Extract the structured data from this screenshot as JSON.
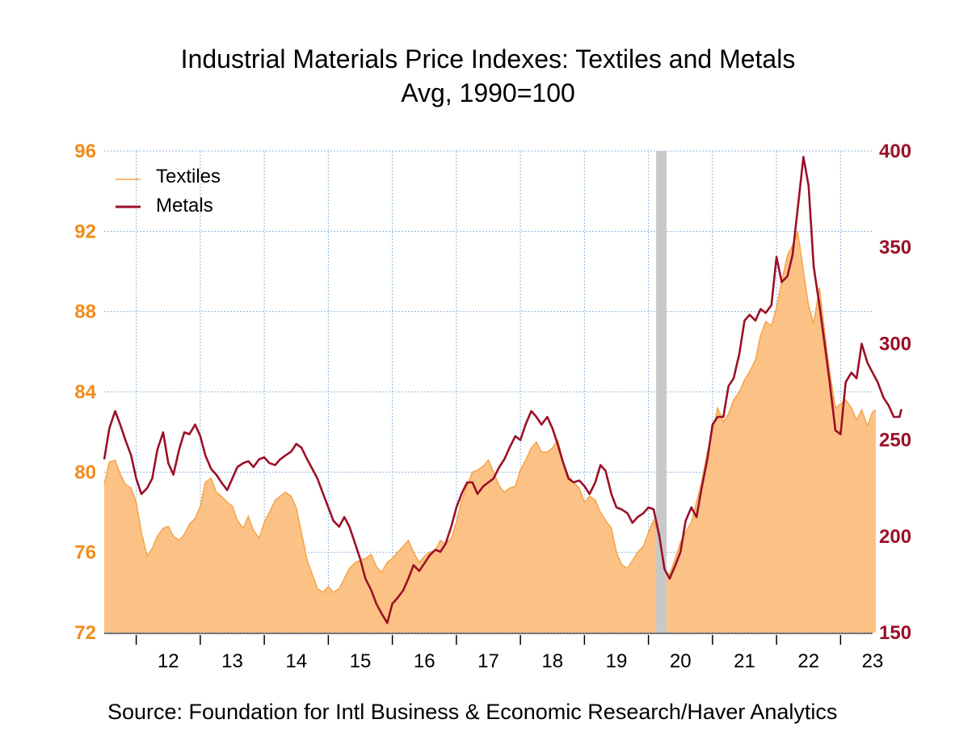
{
  "chart_data": {
    "type": "area+line",
    "title": "Industrial Materials Price Indexes: Textiles and Metals",
    "subtitle": "Avg, 1990=100",
    "source": "Source:  Foundation for Intl Business & Economic Research/Haver Analytics",
    "x_range": [
      2011.5,
      2023.5
    ],
    "x_tick_labels": [
      "12",
      "13",
      "14",
      "15",
      "16",
      "17",
      "18",
      "19",
      "20",
      "21",
      "22",
      "23"
    ],
    "y_left": {
      "ticks": [
        "72",
        "76",
        "80",
        "84",
        "88",
        "92",
        "96"
      ],
      "range": [
        72,
        96
      ]
    },
    "y_right": {
      "ticks": [
        "150",
        "200",
        "250",
        "300",
        "350",
        "400"
      ],
      "range": [
        150,
        400
      ]
    },
    "grid": true,
    "legend_position": "top-left",
    "recession_shading": [
      2020.12,
      2020.28
    ],
    "series": [
      {
        "name": "Textiles",
        "axis": "left",
        "style": "area",
        "color": "#f5a44a",
        "fill": "#fcc285",
        "points": [
          [
            2011.5,
            79.4
          ],
          [
            2011.58,
            80.5
          ],
          [
            2011.67,
            80.6
          ],
          [
            2011.75,
            79.9
          ],
          [
            2011.83,
            79.4
          ],
          [
            2011.92,
            79.2
          ],
          [
            2012.0,
            78.5
          ],
          [
            2012.08,
            77.0
          ],
          [
            2012.17,
            75.8
          ],
          [
            2012.25,
            76.2
          ],
          [
            2012.33,
            76.8
          ],
          [
            2012.42,
            77.2
          ],
          [
            2012.5,
            77.3
          ],
          [
            2012.58,
            76.8
          ],
          [
            2012.67,
            76.6
          ],
          [
            2012.75,
            76.9
          ],
          [
            2012.83,
            77.4
          ],
          [
            2012.92,
            77.7
          ],
          [
            2013.0,
            78.3
          ],
          [
            2013.08,
            79.5
          ],
          [
            2013.17,
            79.7
          ],
          [
            2013.25,
            79.0
          ],
          [
            2013.33,
            78.8
          ],
          [
            2013.42,
            78.5
          ],
          [
            2013.5,
            78.3
          ],
          [
            2013.58,
            77.6
          ],
          [
            2013.67,
            77.2
          ],
          [
            2013.75,
            77.8
          ],
          [
            2013.83,
            77.1
          ],
          [
            2013.92,
            76.7
          ],
          [
            2014.0,
            77.5
          ],
          [
            2014.08,
            78.0
          ],
          [
            2014.17,
            78.6
          ],
          [
            2014.25,
            78.8
          ],
          [
            2014.33,
            79.0
          ],
          [
            2014.42,
            78.8
          ],
          [
            2014.5,
            78.2
          ],
          [
            2014.58,
            77.0
          ],
          [
            2014.67,
            75.6
          ],
          [
            2014.75,
            74.9
          ],
          [
            2014.83,
            74.2
          ],
          [
            2014.92,
            74.0
          ],
          [
            2015.0,
            74.3
          ],
          [
            2015.08,
            74.0
          ],
          [
            2015.17,
            74.2
          ],
          [
            2015.25,
            74.7
          ],
          [
            2015.33,
            75.2
          ],
          [
            2015.42,
            75.5
          ],
          [
            2015.5,
            75.6
          ],
          [
            2015.58,
            75.7
          ],
          [
            2015.67,
            75.9
          ],
          [
            2015.75,
            75.3
          ],
          [
            2015.83,
            75.0
          ],
          [
            2015.92,
            75.5
          ],
          [
            2016.0,
            75.7
          ],
          [
            2016.08,
            76.0
          ],
          [
            2016.17,
            76.3
          ],
          [
            2016.25,
            76.6
          ],
          [
            2016.33,
            76.0
          ],
          [
            2016.42,
            75.5
          ],
          [
            2016.5,
            75.8
          ],
          [
            2016.58,
            76.0
          ],
          [
            2016.67,
            76.1
          ],
          [
            2016.75,
            76.6
          ],
          [
            2016.83,
            76.4
          ],
          [
            2016.92,
            76.7
          ],
          [
            2017.0,
            77.5
          ],
          [
            2017.08,
            78.6
          ],
          [
            2017.17,
            79.3
          ],
          [
            2017.25,
            80.0
          ],
          [
            2017.33,
            80.1
          ],
          [
            2017.42,
            80.3
          ],
          [
            2017.5,
            80.6
          ],
          [
            2017.58,
            80.0
          ],
          [
            2017.67,
            79.3
          ],
          [
            2017.75,
            79.0
          ],
          [
            2017.83,
            79.2
          ],
          [
            2017.92,
            79.3
          ],
          [
            2018.0,
            80.1
          ],
          [
            2018.08,
            80.6
          ],
          [
            2018.17,
            81.2
          ],
          [
            2018.25,
            81.5
          ],
          [
            2018.33,
            81.0
          ],
          [
            2018.42,
            81.0
          ],
          [
            2018.5,
            81.2
          ],
          [
            2018.58,
            81.6
          ],
          [
            2018.67,
            80.5
          ],
          [
            2018.75,
            79.8
          ],
          [
            2018.83,
            79.5
          ],
          [
            2018.92,
            79.2
          ],
          [
            2019.0,
            78.5
          ],
          [
            2019.08,
            78.8
          ],
          [
            2019.17,
            78.6
          ],
          [
            2019.25,
            78.0
          ],
          [
            2019.33,
            77.6
          ],
          [
            2019.42,
            77.2
          ],
          [
            2019.5,
            76.0
          ],
          [
            2019.58,
            75.4
          ],
          [
            2019.67,
            75.2
          ],
          [
            2019.75,
            75.6
          ],
          [
            2019.83,
            76.0
          ],
          [
            2019.92,
            76.3
          ],
          [
            2020.0,
            77.0
          ],
          [
            2020.08,
            77.6
          ],
          [
            2020.17,
            76.7
          ],
          [
            2020.25,
            75.0
          ],
          [
            2020.33,
            74.9
          ],
          [
            2020.42,
            75.7
          ],
          [
            2020.5,
            76.5
          ],
          [
            2020.58,
            77.0
          ],
          [
            2020.67,
            77.5
          ],
          [
            2020.75,
            78.5
          ],
          [
            2020.83,
            79.5
          ],
          [
            2020.92,
            81.0
          ],
          [
            2021.0,
            82.0
          ],
          [
            2021.08,
            83.2
          ],
          [
            2021.17,
            82.5
          ],
          [
            2021.25,
            82.9
          ],
          [
            2021.33,
            83.6
          ],
          [
            2021.42,
            84.0
          ],
          [
            2021.5,
            84.6
          ],
          [
            2021.58,
            85.0
          ],
          [
            2021.67,
            85.6
          ],
          [
            2021.75,
            86.8
          ],
          [
            2021.83,
            87.5
          ],
          [
            2021.92,
            87.3
          ],
          [
            2022.0,
            88.2
          ],
          [
            2022.08,
            89.5
          ],
          [
            2022.17,
            90.8
          ],
          [
            2022.25,
            91.3
          ],
          [
            2022.33,
            92.0
          ],
          [
            2022.42,
            90.0
          ],
          [
            2022.5,
            88.3
          ],
          [
            2022.58,
            87.4
          ],
          [
            2022.67,
            89.2
          ],
          [
            2022.75,
            87.0
          ],
          [
            2022.83,
            85.0
          ],
          [
            2022.92,
            83.2
          ],
          [
            2023.0,
            83.4
          ],
          [
            2023.08,
            83.6
          ],
          [
            2023.17,
            83.2
          ],
          [
            2023.25,
            82.6
          ],
          [
            2023.33,
            83.1
          ],
          [
            2023.42,
            82.3
          ],
          [
            2023.5,
            83.0
          ],
          [
            2023.55,
            83.1
          ]
        ]
      },
      {
        "name": "Metals",
        "axis": "right",
        "style": "line",
        "color": "#9b1028",
        "points": [
          [
            2011.5,
            240
          ],
          [
            2011.58,
            256
          ],
          [
            2011.67,
            265
          ],
          [
            2011.75,
            258
          ],
          [
            2011.83,
            250
          ],
          [
            2011.92,
            242
          ],
          [
            2012.0,
            230
          ],
          [
            2012.08,
            222
          ],
          [
            2012.17,
            225
          ],
          [
            2012.25,
            230
          ],
          [
            2012.33,
            245
          ],
          [
            2012.42,
            254
          ],
          [
            2012.5,
            238
          ],
          [
            2012.58,
            232
          ],
          [
            2012.67,
            245
          ],
          [
            2012.75,
            254
          ],
          [
            2012.83,
            253
          ],
          [
            2012.92,
            258
          ],
          [
            2013.0,
            252
          ],
          [
            2013.08,
            242
          ],
          [
            2013.17,
            235
          ],
          [
            2013.25,
            232
          ],
          [
            2013.33,
            228
          ],
          [
            2013.42,
            224
          ],
          [
            2013.5,
            230
          ],
          [
            2013.58,
            236
          ],
          [
            2013.67,
            238
          ],
          [
            2013.75,
            239
          ],
          [
            2013.83,
            236
          ],
          [
            2013.92,
            240
          ],
          [
            2014.0,
            241
          ],
          [
            2014.08,
            238
          ],
          [
            2014.17,
            237
          ],
          [
            2014.25,
            240
          ],
          [
            2014.33,
            242
          ],
          [
            2014.42,
            244
          ],
          [
            2014.5,
            248
          ],
          [
            2014.58,
            246
          ],
          [
            2014.67,
            240
          ],
          [
            2014.75,
            235
          ],
          [
            2014.83,
            230
          ],
          [
            2014.92,
            222
          ],
          [
            2015.0,
            215
          ],
          [
            2015.08,
            208
          ],
          [
            2015.17,
            205
          ],
          [
            2015.25,
            210
          ],
          [
            2015.33,
            205
          ],
          [
            2015.42,
            196
          ],
          [
            2015.5,
            188
          ],
          [
            2015.58,
            178
          ],
          [
            2015.67,
            172
          ],
          [
            2015.75,
            165
          ],
          [
            2015.83,
            160
          ],
          [
            2015.92,
            155
          ],
          [
            2016.0,
            165
          ],
          [
            2016.08,
            168
          ],
          [
            2016.17,
            172
          ],
          [
            2016.25,
            178
          ],
          [
            2016.33,
            185
          ],
          [
            2016.42,
            182
          ],
          [
            2016.5,
            186
          ],
          [
            2016.58,
            190
          ],
          [
            2016.67,
            193
          ],
          [
            2016.75,
            192
          ],
          [
            2016.83,
            196
          ],
          [
            2016.92,
            205
          ],
          [
            2017.0,
            215
          ],
          [
            2017.08,
            222
          ],
          [
            2017.17,
            228
          ],
          [
            2017.25,
            228
          ],
          [
            2017.33,
            222
          ],
          [
            2017.42,
            226
          ],
          [
            2017.5,
            228
          ],
          [
            2017.58,
            230
          ],
          [
            2017.67,
            236
          ],
          [
            2017.75,
            240
          ],
          [
            2017.83,
            246
          ],
          [
            2017.92,
            252
          ],
          [
            2018.0,
            250
          ],
          [
            2018.08,
            258
          ],
          [
            2018.17,
            265
          ],
          [
            2018.25,
            262
          ],
          [
            2018.33,
            258
          ],
          [
            2018.42,
            262
          ],
          [
            2018.5,
            256
          ],
          [
            2018.58,
            248
          ],
          [
            2018.67,
            238
          ],
          [
            2018.75,
            230
          ],
          [
            2018.83,
            228
          ],
          [
            2018.92,
            229
          ],
          [
            2019.0,
            226
          ],
          [
            2019.08,
            222
          ],
          [
            2019.17,
            228
          ],
          [
            2019.25,
            237
          ],
          [
            2019.33,
            234
          ],
          [
            2019.42,
            222
          ],
          [
            2019.5,
            215
          ],
          [
            2019.58,
            214
          ],
          [
            2019.67,
            212
          ],
          [
            2019.75,
            207
          ],
          [
            2019.83,
            210
          ],
          [
            2019.92,
            212
          ],
          [
            2020.0,
            215
          ],
          [
            2020.08,
            214
          ],
          [
            2020.17,
            200
          ],
          [
            2020.25,
            183
          ],
          [
            2020.33,
            178
          ],
          [
            2020.42,
            185
          ],
          [
            2020.5,
            192
          ],
          [
            2020.58,
            208
          ],
          [
            2020.67,
            215
          ],
          [
            2020.75,
            210
          ],
          [
            2020.83,
            225
          ],
          [
            2020.92,
            240
          ],
          [
            2021.0,
            258
          ],
          [
            2021.08,
            262
          ],
          [
            2021.17,
            262
          ],
          [
            2021.25,
            278
          ],
          [
            2021.33,
            282
          ],
          [
            2021.42,
            295
          ],
          [
            2021.5,
            312
          ],
          [
            2021.58,
            315
          ],
          [
            2021.67,
            312
          ],
          [
            2021.75,
            318
          ],
          [
            2021.83,
            316
          ],
          [
            2021.92,
            320
          ],
          [
            2022.0,
            345
          ],
          [
            2022.08,
            332
          ],
          [
            2022.17,
            335
          ],
          [
            2022.25,
            346
          ],
          [
            2022.33,
            370
          ],
          [
            2022.42,
            397
          ],
          [
            2022.5,
            382
          ],
          [
            2022.58,
            340
          ],
          [
            2022.67,
            320
          ],
          [
            2022.75,
            300
          ],
          [
            2022.83,
            280
          ],
          [
            2022.92,
            255
          ],
          [
            2023.0,
            253
          ],
          [
            2023.08,
            280
          ],
          [
            2023.17,
            285
          ],
          [
            2023.25,
            282
          ],
          [
            2023.33,
            300
          ],
          [
            2023.42,
            290
          ],
          [
            2023.5,
            285
          ],
          [
            2023.58,
            280
          ],
          [
            2023.67,
            272
          ],
          [
            2023.75,
            268
          ],
          [
            2023.83,
            262
          ],
          [
            2023.92,
            262
          ],
          [
            2023.95,
            266
          ]
        ]
      }
    ]
  },
  "colors": {
    "left_axis": "#f08c1a",
    "right_axis": "#9b1028",
    "grid": "#8fb4dc",
    "recession": "#c8c8c8"
  }
}
